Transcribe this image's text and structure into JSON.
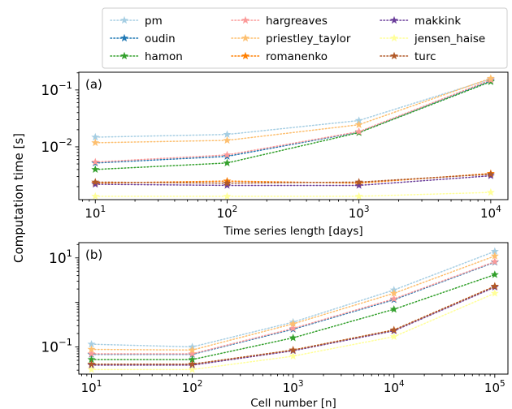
{
  "figure": {
    "shared_ylabel": "Computation time [s]"
  },
  "chart_data": [
    {
      "type": "line",
      "panel_label": "(a)",
      "xlabel": "Time series length [days]",
      "xscale": "log",
      "yscale": "log",
      "xlim": [
        7.5,
        13500
      ],
      "ylim": [
        0.00118,
        0.205
      ],
      "x": [
        10,
        100,
        1000,
        10000
      ],
      "xticks": [
        {
          "v": 10,
          "base": "10",
          "exp": "1"
        },
        {
          "v": 100,
          "base": "10",
          "exp": "2"
        },
        {
          "v": 1000,
          "base": "10",
          "exp": "3"
        },
        {
          "v": 10000,
          "base": "10",
          "exp": "4"
        }
      ],
      "yticks": [
        {
          "v": 0.01,
          "base": "10",
          "exp": "−2"
        },
        {
          "v": 0.1,
          "base": "10",
          "exp": "−1"
        }
      ],
      "series": [
        {
          "name": "pm",
          "color": "#a6cee3",
          "values": [
            0.0148,
            0.0165,
            0.029,
            0.155
          ]
        },
        {
          "name": "oudin",
          "color": "#1f78b4",
          "values": [
            0.0052,
            0.0068,
            0.0182,
            0.145
          ]
        },
        {
          "name": "hamon",
          "color": "#33a02c",
          "values": [
            0.004,
            0.0052,
            0.0178,
            0.14
          ]
        },
        {
          "name": "hargreaves",
          "color": "#fb9a99",
          "values": [
            0.0054,
            0.0072,
            0.0185,
            0.15
          ]
        },
        {
          "name": "priestley_taylor",
          "color": "#fdbf6f",
          "values": [
            0.0118,
            0.013,
            0.0245,
            0.16
          ]
        },
        {
          "name": "romanenko",
          "color": "#ff7f00",
          "values": [
            0.0023,
            0.0025,
            0.0023,
            0.0034
          ]
        },
        {
          "name": "makkink",
          "color": "#6a3d9a",
          "values": [
            0.0022,
            0.0021,
            0.0021,
            0.0031
          ]
        },
        {
          "name": "jensen_haise",
          "color": "#ffff99",
          "values": [
            0.00135,
            0.00135,
            0.00135,
            0.00158
          ]
        },
        {
          "name": "turc",
          "color": "#b15928",
          "values": [
            0.0024,
            0.0023,
            0.0024,
            0.0033
          ]
        }
      ]
    },
    {
      "type": "line",
      "panel_label": "(b)",
      "xlabel": "Cell number [n]",
      "xscale": "log",
      "yscale": "log",
      "xlim": [
        7.5,
        135000
      ],
      "ylim": [
        0.0245,
        22
      ],
      "x": [
        10,
        100,
        1000,
        10000,
        100000
      ],
      "xticks": [
        {
          "v": 10,
          "base": "10",
          "exp": "1"
        },
        {
          "v": 100,
          "base": "10",
          "exp": "2"
        },
        {
          "v": 1000,
          "base": "10",
          "exp": "3"
        },
        {
          "v": 10000,
          "base": "10",
          "exp": "4"
        },
        {
          "v": 100000,
          "base": "10",
          "exp": "5"
        }
      ],
      "yticks": [
        {
          "v": 0.1,
          "base": "10",
          "exp": "−1"
        },
        {
          "v": 10,
          "base": "10",
          "exp": "1"
        }
      ],
      "series": [
        {
          "name": "pm",
          "color": "#a6cee3",
          "values": [
            0.115,
            0.1,
            0.36,
            1.9,
            14
          ]
        },
        {
          "name": "oudin",
          "color": "#1f78b4",
          "values": [
            0.068,
            0.068,
            0.25,
            1.15,
            8
          ]
        },
        {
          "name": "hamon",
          "color": "#33a02c",
          "values": [
            0.052,
            0.052,
            0.16,
            0.7,
            4.2
          ]
        },
        {
          "name": "hargreaves",
          "color": "#fb9a99",
          "values": [
            0.07,
            0.07,
            0.26,
            1.2,
            8.2
          ]
        },
        {
          "name": "priestley_taylor",
          "color": "#fdbf6f",
          "values": [
            0.088,
            0.085,
            0.33,
            1.6,
            11
          ]
        },
        {
          "name": "romanenko",
          "color": "#ff7f00",
          "values": [
            0.04,
            0.04,
            0.085,
            0.24,
            2.3
          ]
        },
        {
          "name": "makkink",
          "color": "#6a3d9a",
          "values": [
            0.039,
            0.039,
            0.082,
            0.23,
            2.2
          ]
        },
        {
          "name": "jensen_haise",
          "color": "#ffff99",
          "values": [
            0.031,
            0.031,
            0.062,
            0.17,
            1.6
          ]
        },
        {
          "name": "turc",
          "color": "#b15928",
          "values": [
            0.041,
            0.041,
            0.085,
            0.24,
            2.3
          ]
        }
      ]
    }
  ]
}
